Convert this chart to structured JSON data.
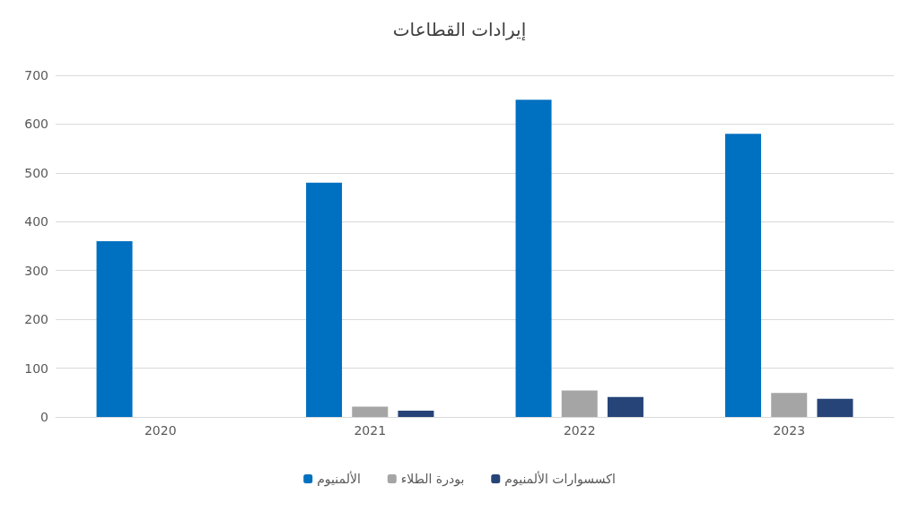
{
  "chart_data": {
    "type": "bar",
    "title": "إيرادات القطاعات",
    "categories": [
      "2020",
      "2021",
      "2022",
      "2023"
    ],
    "series": [
      {
        "name": "الألمنيوم",
        "color": "#0070c0",
        "values": [
          360,
          480,
          650,
          580
        ]
      },
      {
        "name": "بودرة الطلاء",
        "color": "#a5a5a5",
        "values": [
          null,
          21,
          54,
          49
        ]
      },
      {
        "name": "اكسسوارات الألمنيوم",
        "color": "#264478",
        "values": [
          null,
          13,
          41,
          37
        ]
      }
    ],
    "ylim": [
      0,
      700
    ],
    "yticks": [
      0,
      100,
      200,
      300,
      400,
      500,
      600,
      700
    ],
    "grid": "y",
    "legend": "bottom"
  }
}
